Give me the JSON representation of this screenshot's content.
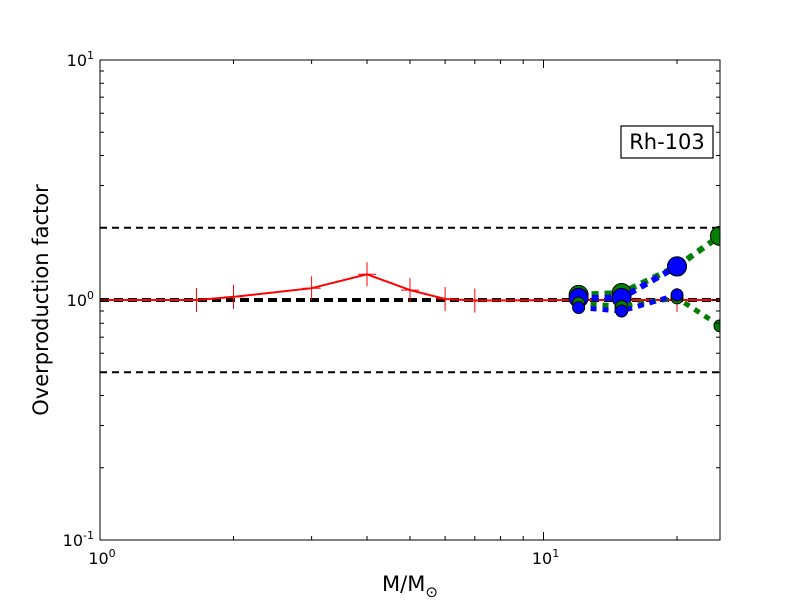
{
  "chart_data": {
    "type": "line",
    "xscale": "log",
    "yscale": "log",
    "xlim": [
      1,
      25
    ],
    "ylim": [
      0.1,
      10
    ],
    "xlabel": "M/M",
    "xlabel_sub": "⊙",
    "ylabel": "Overproduction factor",
    "grid": false,
    "xticks": [
      {
        "value": 1,
        "base": "10",
        "exp": "0"
      },
      {
        "value": 10,
        "base": "10",
        "exp": "1"
      }
    ],
    "yticks": [
      {
        "value": 0.1,
        "base": "10",
        "exp": "-1"
      },
      {
        "value": 1,
        "base": "10",
        "exp": "0"
      },
      {
        "value": 10,
        "base": "10",
        "exp": "1"
      }
    ],
    "annotation": {
      "text": "Rh-103",
      "x": 20.5,
      "y": 4.5
    },
    "reference_lines": [
      {
        "y": 2.0,
        "color": "#000000",
        "style": "dashed",
        "width": 2
      },
      {
        "y": 1.0,
        "color": "#000000",
        "style": "dashed",
        "width": 4
      },
      {
        "y": 0.5,
        "color": "#000000",
        "style": "dashed",
        "width": 2
      }
    ],
    "series": [
      {
        "color": "#ff0000",
        "style": "solid",
        "width": 2,
        "marker": "plus",
        "x": [
          1,
          1.65,
          2,
          3,
          4,
          5,
          6,
          7,
          12,
          15,
          20,
          25
        ],
        "y": [
          1.0,
          1.0,
          1.03,
          1.12,
          1.28,
          1.1,
          1.01,
          0.995,
          1.0,
          1.0,
          1.0,
          1.0
        ]
      },
      {
        "color": "#008000",
        "style": "dotted",
        "width": 6,
        "marker": "circle-large",
        "x": [
          12,
          15,
          20,
          25
        ],
        "y": [
          1.05,
          1.07,
          1.38,
          1.85
        ]
      },
      {
        "color": "#0000ff",
        "style": "dotted",
        "width": 6,
        "marker": "circle-large",
        "x": [
          12,
          15,
          20
        ],
        "y": [
          1.02,
          1.02,
          1.38
        ]
      },
      {
        "color": "#008000",
        "style": "dotted",
        "width": 5,
        "marker": "circle-small",
        "x": [
          12,
          15,
          20,
          25
        ],
        "y": [
          0.97,
          0.94,
          1.02,
          0.78
        ]
      },
      {
        "color": "#0000ff",
        "style": "dotted",
        "width": 5,
        "marker": "circle-small",
        "x": [
          12,
          15,
          20
        ],
        "y": [
          0.93,
          0.9,
          1.05
        ]
      }
    ]
  }
}
